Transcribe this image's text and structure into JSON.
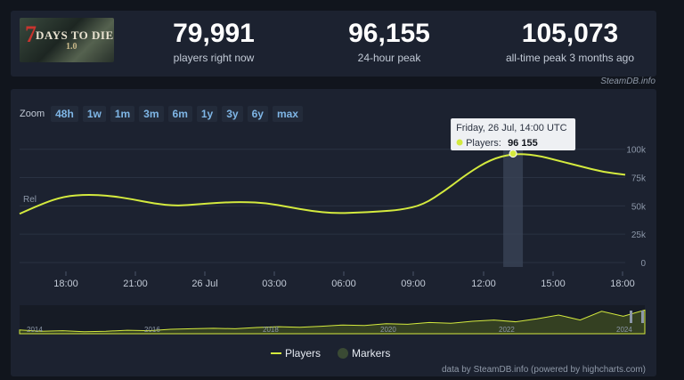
{
  "game": {
    "logo_text": "DAYS TO DIE",
    "logo_seven": "7",
    "logo_sub": "1.0"
  },
  "stats": [
    {
      "value": "79,991",
      "label": "players right now"
    },
    {
      "value": "96,155",
      "label": "24-hour peak"
    },
    {
      "value": "105,073",
      "label": "all-time peak 3 months ago"
    }
  ],
  "credit_top": "SteamDB.info",
  "zoom": {
    "label": "Zoom",
    "buttons": [
      "48h",
      "1w",
      "1m",
      "3m",
      "6m",
      "1y",
      "3y",
      "6y",
      "max"
    ]
  },
  "tooltip": {
    "title": "Friday, 26 Jul, 14:00 UTC",
    "series_label": "Players:",
    "value": "96 155"
  },
  "legend": {
    "players": "Players",
    "markers": "Markers"
  },
  "credit_bottom": "data by SteamDB.info (powered by highcharts.com)",
  "marker_label": "Rel",
  "colors": {
    "line": "#d4ea3e",
    "background": "#1c2230",
    "page": "#11151d",
    "accent": "#7fb6e6"
  },
  "chart_data": {
    "type": "line",
    "series": [
      {
        "name": "Players",
        "x": [
          "16:00",
          "17:00",
          "18:00",
          "19:00",
          "20:00",
          "21:00",
          "22:00",
          "23:00",
          "00:00",
          "01:00",
          "02:00",
          "03:00",
          "04:00",
          "05:00",
          "06:00",
          "07:00",
          "08:00",
          "09:00",
          "10:00",
          "11:00",
          "12:00",
          "13:00",
          "14:00",
          "15:00",
          "16:00",
          "17:00",
          "18:00",
          "19:00"
        ],
        "values": [
          43000,
          52000,
          58500,
          60000,
          59000,
          56000,
          52000,
          50000,
          51500,
          53000,
          53500,
          52500,
          49000,
          45500,
          43500,
          44000,
          45000,
          46500,
          51000,
          64000,
          79000,
          91000,
          96155,
          95000,
          90000,
          85000,
          80000,
          77500
        ]
      }
    ],
    "y_ticks": [
      "0",
      "25k",
      "50k",
      "75k",
      "100k"
    ],
    "ylim": [
      0,
      110000
    ],
    "x_ticks": [
      "18:00",
      "21:00",
      "26 Jul",
      "03:00",
      "06:00",
      "09:00",
      "12:00",
      "15:00",
      "18:00"
    ],
    "navigator_ticks": [
      "2014",
      "2016",
      "2018",
      "2020",
      "2022",
      "2024"
    ],
    "grid": true,
    "legend_position": "bottom-center"
  }
}
